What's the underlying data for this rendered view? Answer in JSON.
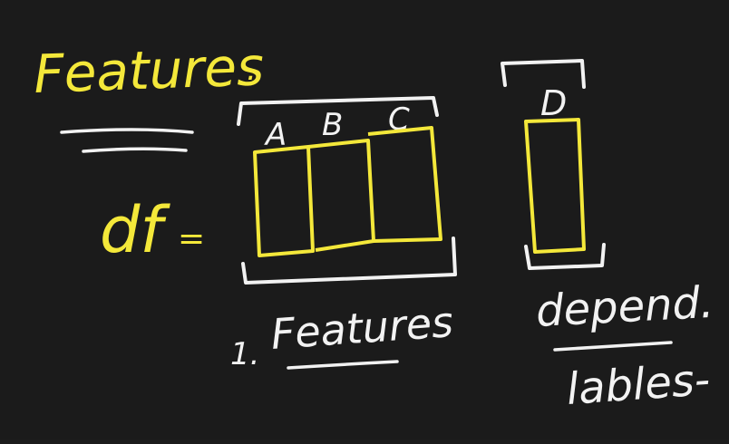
{
  "title": "Features",
  "title_dot": ".",
  "equation_lhs": "df",
  "equals_sign": "=",
  "columns": {
    "a": "A",
    "b": "B",
    "c": "C",
    "d": "D"
  },
  "features_label": {
    "number": "1.",
    "text": "Features",
    "dot": "."
  },
  "dependent_label": {
    "line1": "depend.",
    "line2": "lables-"
  },
  "colors": {
    "background": "#1b1b1b",
    "highlight": "#f4e83a",
    "ink": "#f2f2f2"
  }
}
